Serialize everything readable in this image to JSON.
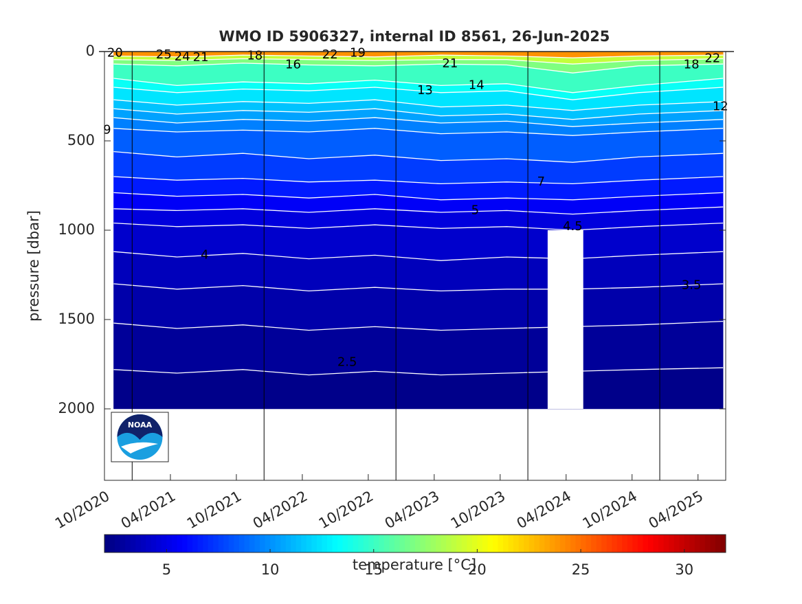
{
  "chart_data": {
    "type": "contour",
    "title": "WMO ID 5906327, internal ID 8561, 26-Jun-2025",
    "ylabel": "pressure [dbar]",
    "colorbar_label": "temperature [°C]",
    "logo_text": "NOAA",
    "xlim": [
      2020.75,
      2025.46
    ],
    "xticks": [
      {
        "value": 2020.75,
        "label": "10/2020"
      },
      {
        "value": 2021.25,
        "label": "04/2021"
      },
      {
        "value": 2021.75,
        "label": "10/2021"
      },
      {
        "value": 2022.25,
        "label": "04/2022"
      },
      {
        "value": 2022.75,
        "label": "10/2022"
      },
      {
        "value": 2023.25,
        "label": "04/2023"
      },
      {
        "value": 2023.75,
        "label": "10/2023"
      },
      {
        "value": 2024.25,
        "label": "04/2024"
      },
      {
        "value": 2024.75,
        "label": "10/2024"
      },
      {
        "value": 2025.25,
        "label": "04/2025"
      }
    ],
    "ylim": [
      2400,
      0
    ],
    "yticks": [
      0,
      500,
      1000,
      1500,
      2000
    ],
    "clim": [
      2,
      32
    ],
    "cticks": [
      5,
      10,
      15,
      20,
      25,
      30
    ],
    "colormap": "jet",
    "vlines": [
      2020.96,
      2021.96,
      2022.96,
      2023.96,
      2024.96
    ],
    "x": [
      2020.82,
      2021.3,
      2021.8,
      2022.3,
      2022.8,
      2023.3,
      2023.8,
      2024.3,
      2024.8,
      2025.44
    ],
    "pmax": 2000,
    "surface_temperature": 24,
    "bottom_temperature": 2.3,
    "contours": [
      {
        "level": 20,
        "pressure": [
          25,
          30,
          20,
          25,
          30,
          20,
          25,
          35,
          25,
          20
        ]
      },
      {
        "level": 18,
        "pressure": [
          45,
          50,
          40,
          45,
          50,
          45,
          45,
          70,
          50,
          40
        ]
      },
      {
        "level": 16,
        "pressure": [
          70,
          80,
          65,
          75,
          80,
          70,
          75,
          120,
          80,
          70
        ]
      },
      {
        "level": 14,
        "pressure": [
          150,
          190,
          170,
          180,
          160,
          190,
          180,
          230,
          190,
          150
        ]
      },
      {
        "level": 13,
        "pressure": [
          200,
          230,
          210,
          220,
          200,
          230,
          220,
          270,
          230,
          200
        ]
      },
      {
        "level": 12,
        "pressure": [
          270,
          300,
          280,
          290,
          270,
          310,
          300,
          330,
          300,
          280
        ]
      },
      {
        "level": 11,
        "pressure": [
          320,
          350,
          330,
          340,
          320,
          360,
          350,
          380,
          350,
          330
        ]
      },
      {
        "level": 10,
        "pressure": [
          370,
          400,
          380,
          390,
          370,
          400,
          390,
          420,
          400,
          380
        ]
      },
      {
        "level": 9,
        "pressure": [
          430,
          450,
          440,
          450,
          430,
          460,
          450,
          470,
          450,
          430
        ]
      },
      {
        "level": 8,
        "pressure": [
          560,
          590,
          570,
          600,
          580,
          610,
          600,
          620,
          590,
          570
        ]
      },
      {
        "level": 7,
        "pressure": [
          700,
          720,
          710,
          730,
          720,
          740,
          730,
          740,
          720,
          700
        ]
      },
      {
        "level": 6,
        "pressure": [
          790,
          810,
          800,
          820,
          800,
          830,
          820,
          830,
          810,
          790
        ]
      },
      {
        "level": 5,
        "pressure": [
          880,
          890,
          880,
          900,
          880,
          900,
          890,
          910,
          890,
          870
        ]
      },
      {
        "level": 4.5,
        "pressure": [
          960,
          980,
          970,
          990,
          970,
          990,
          980,
          1000,
          980,
          960
        ]
      },
      {
        "level": 4,
        "pressure": [
          1120,
          1150,
          1130,
          1160,
          1140,
          1170,
          1150,
          1160,
          1140,
          1120
        ]
      },
      {
        "level": 3.5,
        "pressure": [
          1300,
          1330,
          1310,
          1340,
          1320,
          1340,
          1330,
          1330,
          1320,
          1300
        ]
      },
      {
        "level": 3,
        "pressure": [
          1520,
          1550,
          1530,
          1560,
          1540,
          1560,
          1550,
          1540,
          1530,
          1510
        ]
      },
      {
        "level": 2.5,
        "pressure": [
          1780,
          1800,
          1780,
          1810,
          1790,
          1810,
          1800,
          1790,
          1780,
          1770
        ]
      }
    ],
    "gap": {
      "x": [
        2024.11,
        2024.38
      ],
      "pressure": [
        1000,
        2000
      ]
    },
    "contour_labels": [
      {
        "value": 20,
        "x": 2020.83,
        "p": 10
      },
      {
        "value": 25,
        "x": 2021.2,
        "p": 20
      },
      {
        "value": 24,
        "x": 2021.34,
        "p": 30
      },
      {
        "value": 21,
        "x": 2021.48,
        "p": 35
      },
      {
        "value": 18,
        "x": 2021.89,
        "p": 25
      },
      {
        "value": 16,
        "x": 2022.18,
        "p": 75
      },
      {
        "value": 22,
        "x": 2022.46,
        "p": 20
      },
      {
        "value": 19,
        "x": 2022.67,
        "p": 10
      },
      {
        "value": 21,
        "x": 2023.37,
        "p": 70
      },
      {
        "value": 13,
        "x": 2023.18,
        "p": 220
      },
      {
        "value": 14,
        "x": 2023.57,
        "p": 190
      },
      {
        "value": 18,
        "x": 2025.2,
        "p": 75
      },
      {
        "value": 22,
        "x": 2025.36,
        "p": 40
      },
      {
        "value": 9,
        "x": 2020.77,
        "p": 440
      },
      {
        "value": 12,
        "x": 2025.42,
        "p": 310
      },
      {
        "value": 7,
        "x": 2024.06,
        "p": 730
      },
      {
        "value": 5,
        "x": 2023.56,
        "p": 890
      },
      {
        "value": 4.5,
        "x": 2024.3,
        "p": 980
      },
      {
        "value": 4,
        "x": 2021.51,
        "p": 1140
      },
      {
        "value": 3.5,
        "x": 2025.2,
        "p": 1310
      },
      {
        "value": 2.5,
        "x": 2022.59,
        "p": 1740
      }
    ]
  }
}
